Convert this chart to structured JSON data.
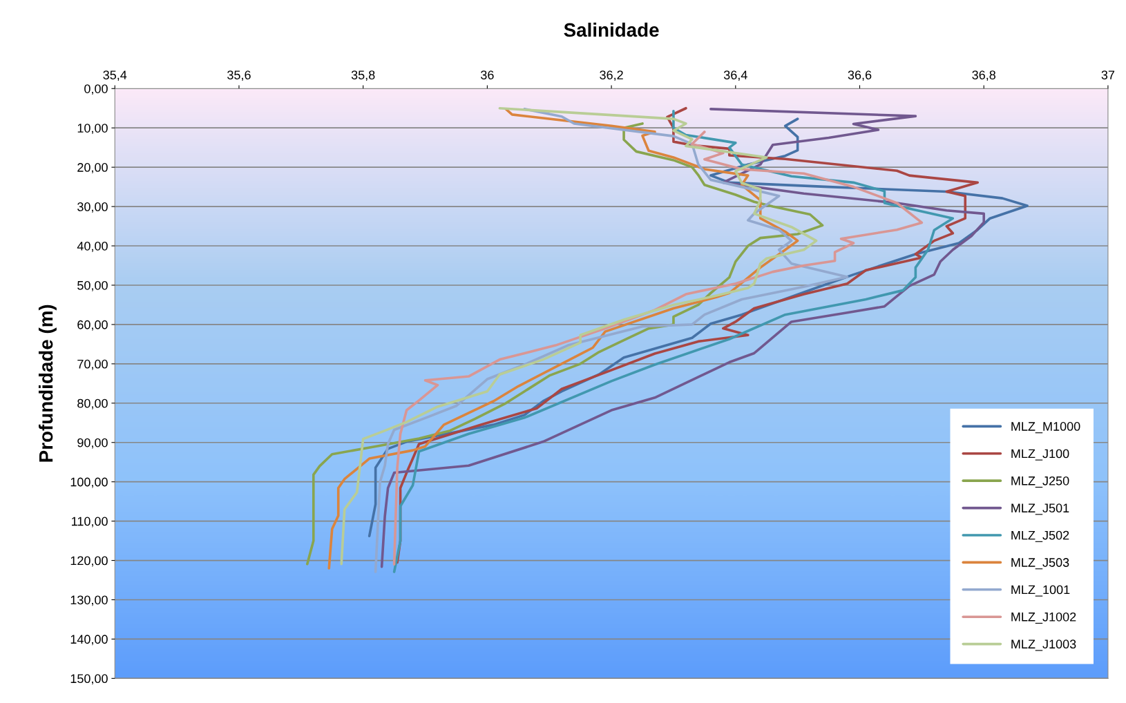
{
  "chart_data": {
    "type": "line",
    "title": "Salinidade",
    "ylabel": "Profundidade (m)",
    "xlim": [
      35.4,
      37
    ],
    "xticks": [
      {
        "value": 35.4,
        "label": "35,4"
      },
      {
        "value": 35.6,
        "label": "35,6"
      },
      {
        "value": 35.8,
        "label": "35,8"
      },
      36,
      {
        "value": 36.2,
        "label": "36,2"
      },
      {
        "value": 36.4,
        "label": "36,4"
      },
      {
        "value": 36.6,
        "label": "36,6"
      },
      {
        "value": 36.8,
        "label": "36,8"
      },
      37
    ],
    "ylim": [
      150,
      0
    ],
    "yticks": [
      {
        "value": 0,
        "label": "0,00"
      },
      {
        "value": 10,
        "label": "10,00"
      },
      {
        "value": 20,
        "label": "20,00"
      },
      {
        "value": 30,
        "label": "30,00"
      },
      {
        "value": 40,
        "label": "40,00"
      },
      {
        "value": 50,
        "label": "50,00"
      },
      {
        "value": 60,
        "label": "60,00"
      },
      {
        "value": 70,
        "label": "70,00"
      },
      {
        "value": 80,
        "label": "80,00"
      },
      {
        "value": 90,
        "label": "90,00"
      },
      {
        "value": 100,
        "label": "100,00"
      },
      {
        "value": 110,
        "label": "110,00"
      },
      {
        "value": 120,
        "label": "120,00"
      },
      {
        "value": 130,
        "label": "130,00"
      },
      {
        "value": 140,
        "label": "140,00"
      },
      {
        "value": 150,
        "label": "150,00"
      }
    ],
    "grid": "y",
    "legend": "bottom right",
    "series": [
      {
        "name": "MLZ_M1000",
        "color": "#4572a7",
        "x": [
          36.5,
          36.48,
          36.5,
          36.5,
          36.48,
          36.42,
          36.36,
          36.39,
          36.55,
          36.74,
          36.83,
          36.87,
          36.81,
          36.79,
          36.76,
          36.69,
          36.59,
          36.51,
          36.41,
          36.36,
          36.33,
          36.22,
          36.18,
          36.12,
          36.09,
          36.06,
          36.01,
          35.87,
          35.84,
          35.82,
          35.82,
          35.81
        ],
        "values": [
          7.7,
          9.5,
          12.3,
          15.7,
          17.1,
          19.3,
          22.1,
          23.9,
          25,
          26.2,
          27.9,
          29.8,
          33,
          35.9,
          39.3,
          42.1,
          47.3,
          51.8,
          57.5,
          59.8,
          63.4,
          68.4,
          72.7,
          77,
          79.5,
          83,
          85.5,
          89.8,
          91.6,
          96.4,
          105.7,
          113.8
        ]
      },
      {
        "name": "MLZ_J100",
        "color": "#aa4643",
        "x": [
          36.32,
          36.29,
          36.3,
          36.3,
          36.33,
          36.39,
          36.39,
          36.48,
          36.66,
          36.68,
          36.79,
          36.74,
          36.77,
          36.77,
          36.77,
          36.74,
          36.75,
          36.72,
          36.69,
          36.7,
          36.61,
          36.58,
          36.51,
          36.43,
          36.4,
          36.38,
          36.42,
          36.34,
          36.27,
          36.16,
          36.12,
          36.08,
          35.99,
          35.89,
          35.88,
          35.87,
          35.86,
          35.86,
          35.855
        ],
        "values": [
          5,
          7.2,
          10,
          13.5,
          14.4,
          15.3,
          17,
          17.9,
          20.9,
          22.1,
          23.9,
          26.2,
          27.3,
          30.7,
          33,
          35,
          36.8,
          38.7,
          42.1,
          43,
          46.2,
          49.6,
          52.3,
          55.9,
          59.3,
          61,
          62.7,
          64.3,
          67.4,
          74,
          76.4,
          81.3,
          85.5,
          90.4,
          94.1,
          97.7,
          101.6,
          115,
          120.5
        ]
      },
      {
        "name": "MLZ_J250",
        "color": "#89a54e",
        "x": [
          36.25,
          36.22,
          36.22,
          36.24,
          36.3,
          36.33,
          36.34,
          36.35,
          36.4,
          36.43,
          36.46,
          36.52,
          36.54,
          36.5,
          36.44,
          36.42,
          36.4,
          36.39,
          36.36,
          36.34,
          36.3,
          36.3,
          36.26,
          36.22,
          36.18,
          36.15,
          36.1,
          36.06,
          36.03,
          35.98,
          35.94,
          35.89,
          35.82,
          35.75,
          35.73,
          35.72,
          35.72,
          35.72,
          35.71
        ],
        "values": [
          8.9,
          10,
          13,
          16,
          18.2,
          20,
          22,
          24.5,
          27,
          28.8,
          30,
          32,
          34.8,
          37,
          38,
          40,
          44,
          48,
          52,
          55,
          58,
          60,
          61,
          64,
          67,
          70,
          73,
          77,
          80,
          84,
          87,
          89,
          91,
          93,
          96,
          98.2,
          105,
          115,
          120.9
        ]
      },
      {
        "name": "MLZ_J501",
        "color": "#71588f",
        "x": [
          36.36,
          36.69,
          36.59,
          36.63,
          36.55,
          36.46,
          36.44,
          36.38,
          36.51,
          36.66,
          36.74,
          36.8,
          36.8,
          36.78,
          36.75,
          36.73,
          36.72,
          36.68,
          36.64,
          36.58,
          36.49,
          36.43,
          36.39,
          36.27,
          36.2,
          36.09,
          35.97,
          35.85,
          35.84,
          35.835,
          35.83
        ],
        "values": [
          5.2,
          7,
          9,
          10.5,
          12.5,
          14.3,
          19.3,
          23.9,
          26.7,
          29.1,
          31,
          31.8,
          34,
          37.5,
          41,
          44,
          47.3,
          50.2,
          55.4,
          57,
          59.3,
          67.3,
          69.6,
          78.6,
          81.8,
          89.8,
          95.9,
          97.7,
          101.6,
          108.8,
          121.6
        ]
      },
      {
        "name": "MLZ_J502",
        "color": "#4198af",
        "x": [
          36.3,
          36.3,
          36.32,
          36.4,
          36.39,
          36.41,
          36.49,
          36.59,
          36.64,
          36.64,
          36.75,
          36.72,
          36.71,
          36.69,
          36.69,
          36.67,
          36.61,
          36.48,
          36.39,
          36.27,
          36.2,
          36.06,
          35.97,
          35.89,
          35.88,
          35.86,
          35.86,
          35.85
        ],
        "values": [
          5.7,
          10,
          11.8,
          13.8,
          15,
          19.3,
          22.3,
          23.9,
          26.1,
          29.1,
          33,
          36,
          41,
          45.5,
          48,
          51.3,
          53.6,
          57.5,
          63.7,
          70.2,
          74.4,
          83.7,
          87.8,
          92.3,
          100.9,
          106.2,
          115,
          122.9
        ]
      },
      {
        "name": "MLZ_J503",
        "color": "#db843d",
        "x": [
          36.03,
          36.04,
          36.2,
          36.27,
          36.25,
          36.26,
          36.3,
          36.35,
          36.42,
          36.41,
          36.44,
          36.44,
          36.48,
          36.5,
          36.48,
          36.44,
          36.39,
          36.37,
          36.3,
          36.19,
          36.17,
          36.05,
          36.01,
          35.93,
          35.9,
          35.88,
          35.81,
          35.77,
          35.76,
          35.76,
          35.75,
          35.745
        ],
        "values": [
          5.2,
          6.6,
          9.5,
          11,
          12,
          15.8,
          17.5,
          20.5,
          22.1,
          24.5,
          28.4,
          33,
          36.4,
          38.7,
          41,
          45.5,
          52,
          53,
          55.9,
          61.8,
          65.9,
          75.7,
          79.5,
          85.5,
          91,
          92,
          94.1,
          99.3,
          101.6,
          108.6,
          112,
          122
        ]
      },
      {
        "name": "MLZ_1001",
        "color": "#93a9cf",
        "x": [
          36.06,
          36.12,
          36.14,
          36.3,
          36.33,
          36.34,
          36.36,
          36.41,
          36.47,
          36.43,
          36.42,
          36.47,
          36.49,
          36.47,
          36.49,
          36.58,
          36.51,
          36.41,
          36.35,
          36.33,
          36.25,
          36.13,
          36.06,
          36.0,
          35.95,
          35.9,
          35.85,
          35.84,
          35.835,
          35.827,
          35.82
        ],
        "values": [
          5.2,
          7.1,
          8.9,
          12.1,
          14.1,
          19.3,
          23.2,
          25,
          27.3,
          31.8,
          33.5,
          35.9,
          38.7,
          41,
          44.5,
          47.9,
          50.4,
          53.6,
          57.5,
          60,
          60.5,
          65.3,
          70.2,
          73.9,
          80.7,
          83.8,
          86.8,
          90.4,
          95.9,
          100.2,
          122.9
        ]
      },
      {
        "name": "MLZ_J1002",
        "color": "#d99694",
        "x": [
          36.35,
          36.33,
          36.38,
          36.35,
          36.41,
          36.51,
          36.59,
          36.66,
          36.7,
          36.66,
          36.57,
          36.59,
          36.56,
          36.56,
          36.51,
          36.46,
          36.4,
          36.32,
          36.27,
          36.19,
          36.11,
          36.02,
          35.97,
          35.9,
          35.92,
          35.89,
          35.87,
          35.86,
          35.855,
          35.85
        ],
        "values": [
          11,
          14.1,
          16.4,
          18,
          20.5,
          21.6,
          25,
          29.1,
          34.1,
          35.9,
          38.2,
          39.3,
          41.6,
          43.8,
          45,
          46.6,
          49.6,
          52.3,
          56.3,
          61,
          65.3,
          68.9,
          73.2,
          74.2,
          75.4,
          79.3,
          81.8,
          87.8,
          96.4,
          121
        ]
      },
      {
        "name": "MLZ_J1003",
        "color": "#b9cd96",
        "x": [
          36.02,
          36.3,
          36.32,
          36.3,
          36.33,
          36.32,
          36.45,
          36.4,
          36.41,
          36.44,
          36.44,
          36.43,
          36.49,
          36.53,
          36.51,
          36.45,
          36.44,
          36.43,
          36.42,
          36.36,
          36.3,
          36.22,
          36.15,
          36.15,
          36.09,
          36.02,
          36.0,
          35.92,
          35.87,
          35.83,
          35.8,
          35.79,
          35.77,
          35.765
        ],
        "values": [
          5,
          7.7,
          8.9,
          10.7,
          12.9,
          14.6,
          17.5,
          21,
          24,
          25.6,
          28.4,
          31.8,
          35.2,
          38.7,
          41,
          43.2,
          44.5,
          49.6,
          50.7,
          53,
          55,
          58.8,
          62.7,
          64.6,
          68.9,
          72.7,
          77,
          80.9,
          84.8,
          87.3,
          89.1,
          102.7,
          107,
          120.9
        ]
      }
    ]
  }
}
